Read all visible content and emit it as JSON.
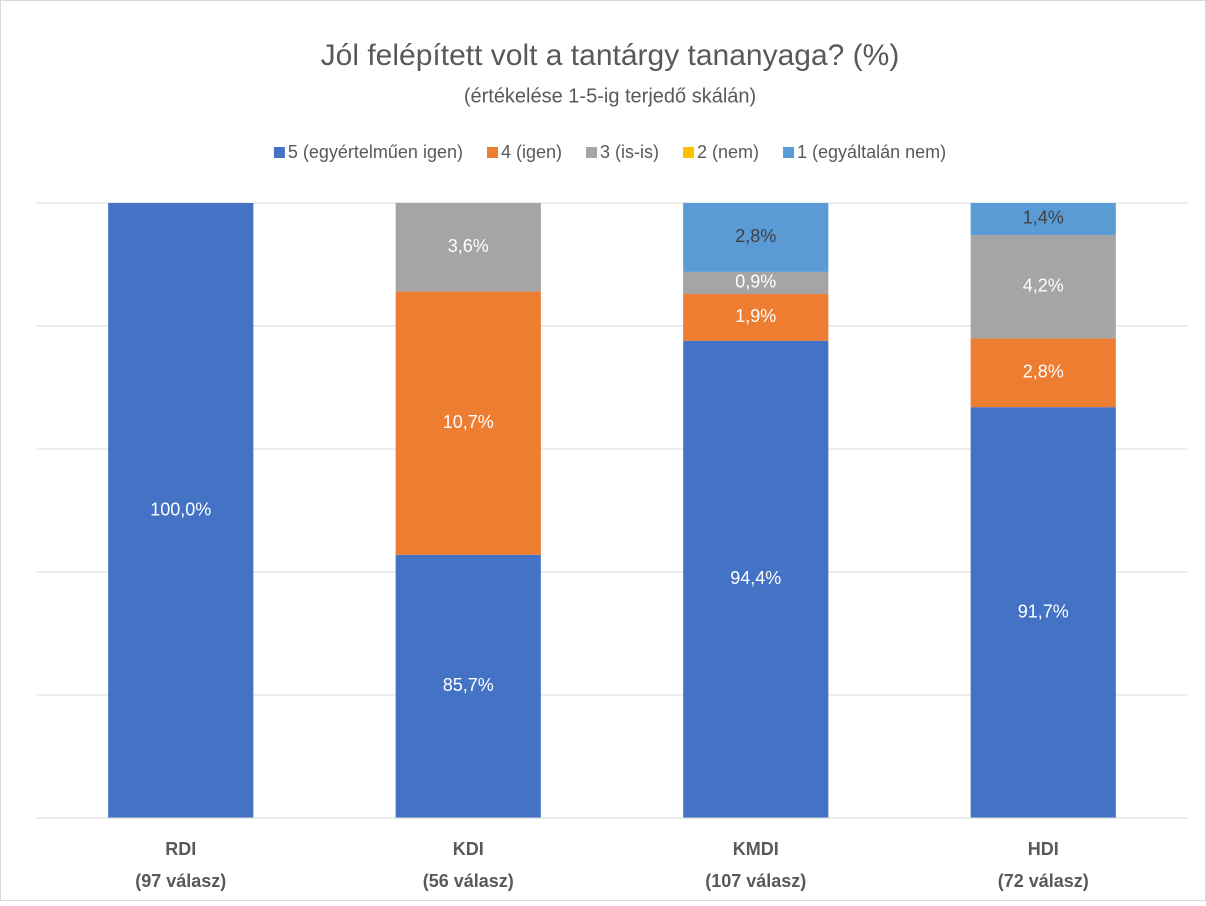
{
  "chart_data": {
    "type": "stacked_bar",
    "title": "Jól felépített volt a tantárgy tananyaga? (%)",
    "subtitle": "(értékelése 1-5-ig terjedő skálán)",
    "categories": [
      [
        "RDI",
        "(97 válasz)"
      ],
      [
        "KDI",
        "(56 válasz)"
      ],
      [
        "KMDI",
        "(107 válasz)"
      ],
      [
        "HDI",
        "(72 válasz)"
      ]
    ],
    "series": [
      {
        "name": "5 (egyértelműen igen)",
        "color": "#4472c4",
        "label_color": "#ffffff",
        "values": [
          100.0,
          85.7,
          94.4,
          91.7
        ],
        "value_labels": [
          "100,0%",
          "85,7%",
          "94,4%",
          "91,7%"
        ]
      },
      {
        "name": "4 (igen)",
        "color": "#ed7d31",
        "label_color": "#ffffff",
        "values": [
          null,
          10.7,
          1.9,
          2.8
        ],
        "value_labels": [
          null,
          "10,7%",
          "1,9%",
          "2,8%"
        ]
      },
      {
        "name": "3 (is-is)",
        "color": "#a5a5a5",
        "label_color": "#ffffff",
        "values": [
          null,
          3.6,
          0.9,
          4.2
        ],
        "value_labels": [
          null,
          "3,6%",
          "0,9%",
          "4,2%"
        ]
      },
      {
        "name": "2 (nem)",
        "color": "#ffc000",
        "label_color": "#404040",
        "values": [
          null,
          null,
          null,
          null
        ],
        "value_labels": [
          null,
          null,
          null,
          null
        ]
      },
      {
        "name": "1 (egyáltalán nem)",
        "color": "#5b9bd5",
        "label_color": "#404040",
        "values": [
          null,
          null,
          2.8,
          1.4
        ],
        "value_labels": [
          null,
          null,
          "2,8%",
          "1,4%"
        ]
      }
    ],
    "ylim": [
      75,
      100
    ],
    "yticks": [
      75,
      80,
      85,
      90,
      95,
      100
    ],
    "grid": true,
    "legend": "top"
  }
}
